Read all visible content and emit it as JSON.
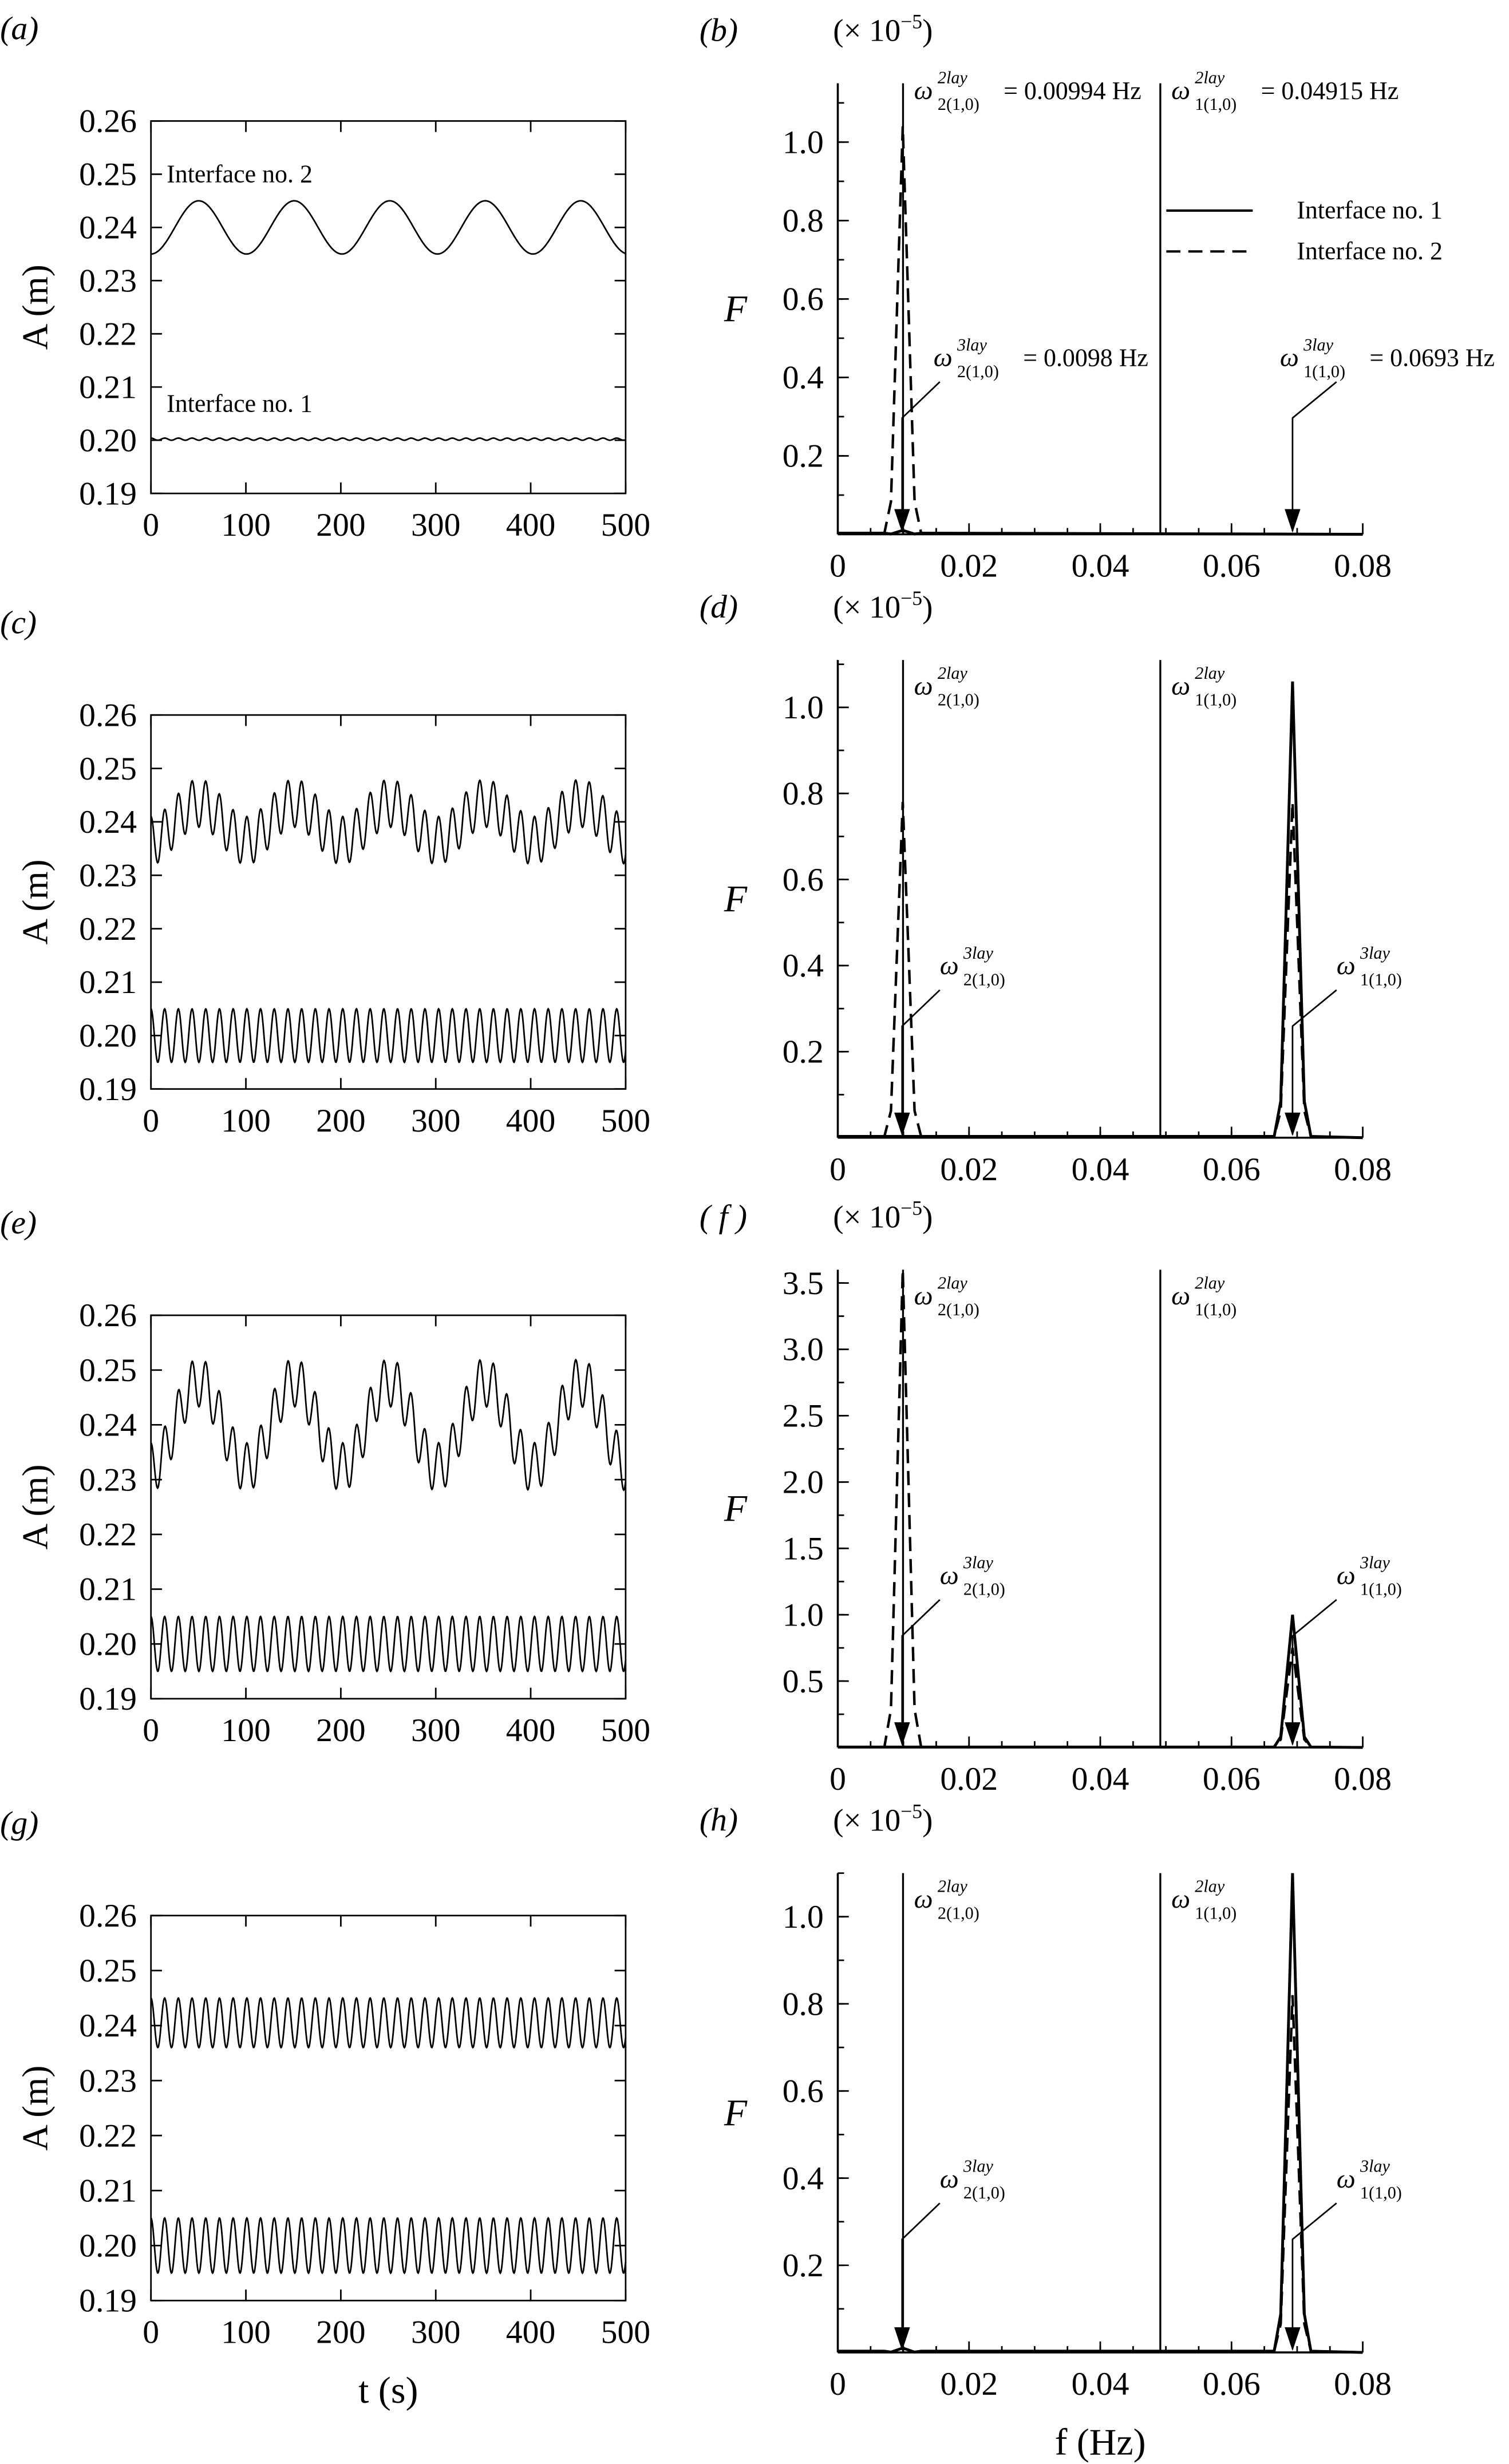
{
  "chart_data": [
    {
      "panel": "(a)",
      "type": "line",
      "xlabel": "",
      "ylabel": "A (m)",
      "xlim": [
        0,
        500
      ],
      "ylim": [
        0.19,
        0.26
      ],
      "xticks": [
        "0",
        "100",
        "200",
        "300",
        "400",
        "500"
      ],
      "yticks": [
        "0.19",
        "0.20",
        "0.21",
        "0.22",
        "0.23",
        "0.24",
        "0.25",
        "0.26"
      ],
      "annotations": [
        "Interface no. 2",
        "Interface no. 1"
      ],
      "series": [
        {
          "name": "Interface no. 2",
          "mean": 0.24,
          "components": [
            {
              "frequency_hz": 0.00994,
              "amplitude": 0.005
            }
          ]
        },
        {
          "name": "Interface no. 1",
          "mean": 0.2002,
          "components": [
            {
              "frequency_hz": 0.0693,
              "amplitude": 0.0002
            }
          ]
        }
      ]
    },
    {
      "panel": "(b)",
      "type": "line",
      "xlabel": "",
      "ylabel": "F",
      "multiplier": "(× 10",
      "multiplier_exp": "−5",
      "multiplier_close": ")",
      "xlim": [
        0,
        0.08
      ],
      "ylim": [
        0,
        1.15
      ],
      "xticks": [
        "0",
        "0.02",
        "0.04",
        "0.06",
        "0.08"
      ],
      "yticks": [
        "0.2",
        "0.4",
        "0.6",
        "0.8",
        "1.0"
      ],
      "legend": {
        "placement": "top-right",
        "entries": [
          {
            "label": "Interface no. 1",
            "style": "solid"
          },
          {
            "label": "Interface no. 2",
            "style": "dashed"
          }
        ]
      },
      "vlines": [
        {
          "f": 0.00994,
          "sup": "2lay",
          "sub": "2(1,0)",
          "value": "= 0.00994 Hz"
        },
        {
          "f": 0.04915,
          "sup": "2lay",
          "sub": "1(1,0)",
          "value": "= 0.04915 Hz"
        }
      ],
      "arrows": [
        {
          "f": 0.0098,
          "sup": "3lay",
          "sub": "2(1,0)",
          "value": "= 0.0098 Hz"
        },
        {
          "f": 0.0693,
          "sup": "3lay",
          "sub": "1(1,0)",
          "value": "= 0.0693 Hz"
        }
      ],
      "series": [
        {
          "name": "Interface no. 1",
          "style": "solid",
          "peaks": [
            {
              "f": 0.0099,
              "F": 0.01
            }
          ]
        },
        {
          "name": "Interface no. 2",
          "style": "dashed",
          "peaks": [
            {
              "f": 0.0099,
              "F": 1.04
            }
          ]
        }
      ]
    },
    {
      "panel": "(c)",
      "type": "line",
      "xlabel": "",
      "ylabel": "A (m)",
      "xlim": [
        0,
        500
      ],
      "ylim": [
        0.19,
        0.26
      ],
      "xticks": [
        "0",
        "100",
        "200",
        "300",
        "400",
        "500"
      ],
      "yticks": [
        "0.19",
        "0.20",
        "0.21",
        "0.22",
        "0.23",
        "0.24",
        "0.25",
        "0.26"
      ],
      "series": [
        {
          "name": "Interface no. 2",
          "mean": 0.24,
          "components": [
            {
              "frequency_hz": 0.00994,
              "amplitude": 0.0035
            },
            {
              "frequency_hz": 0.0693,
              "amplitude": 0.0045
            }
          ]
        },
        {
          "name": "Interface no. 1",
          "mean": 0.2,
          "components": [
            {
              "frequency_hz": 0.0693,
              "amplitude": 0.005
            }
          ]
        }
      ]
    },
    {
      "panel": "(d)",
      "type": "line",
      "xlabel": "",
      "ylabel": "F",
      "multiplier": "(× 10",
      "multiplier_exp": "−5",
      "multiplier_close": ")",
      "xlim": [
        0,
        0.08
      ],
      "ylim": [
        0,
        1.11
      ],
      "xticks": [
        "0",
        "0.02",
        "0.04",
        "0.06",
        "0.08"
      ],
      "yticks": [
        "0.2",
        "0.4",
        "0.6",
        "0.8",
        "1.0"
      ],
      "vlines": [
        {
          "f": 0.00994,
          "sup": "2lay",
          "sub": "2(1,0)",
          "value": ""
        },
        {
          "f": 0.04915,
          "sup": "2lay",
          "sub": "1(1,0)",
          "value": ""
        }
      ],
      "arrows": [
        {
          "f": 0.0098,
          "sup": "3lay",
          "sub": "2(1,0)",
          "value": ""
        },
        {
          "f": 0.0693,
          "sup": "3lay",
          "sub": "1(1,0)",
          "value": ""
        }
      ],
      "series": [
        {
          "name": "Interface no. 1",
          "style": "solid",
          "peaks": [
            {
              "f": 0.0693,
              "F": 1.06
            }
          ]
        },
        {
          "name": "Interface no. 2",
          "style": "dashed",
          "peaks": [
            {
              "f": 0.0099,
              "F": 0.78
            },
            {
              "f": 0.0693,
              "F": 0.78
            }
          ]
        }
      ]
    },
    {
      "panel": "(e)",
      "type": "line",
      "xlabel": "",
      "ylabel": "A (m)",
      "xlim": [
        0,
        500
      ],
      "ylim": [
        0.19,
        0.26
      ],
      "xticks": [
        "0",
        "100",
        "200",
        "300",
        "400",
        "500"
      ],
      "yticks": [
        "0.19",
        "0.20",
        "0.21",
        "0.22",
        "0.23",
        "0.24",
        "0.25",
        "0.26"
      ],
      "series": [
        {
          "name": "Interface no. 2",
          "mean": 0.24,
          "components": [
            {
              "frequency_hz": 0.00994,
              "amplitude": 0.0078
            },
            {
              "frequency_hz": 0.0693,
              "amplitude": 0.0045
            }
          ]
        },
        {
          "name": "Interface no. 1",
          "mean": 0.2,
          "components": [
            {
              "frequency_hz": 0.0693,
              "amplitude": 0.005
            }
          ]
        }
      ]
    },
    {
      "panel": "( f )",
      "type": "line",
      "xlabel": "",
      "ylabel": "F",
      "multiplier": "(× 10",
      "multiplier_exp": "−5",
      "multiplier_close": ")",
      "xlim": [
        0,
        0.08
      ],
      "ylim": [
        0,
        3.6
      ],
      "xticks": [
        "0",
        "0.02",
        "0.04",
        "0.06",
        "0.08"
      ],
      "yticks": [
        "0.5",
        "1.0",
        "1.5",
        "2.0",
        "2.5",
        "3.0",
        "3.5"
      ],
      "vlines": [
        {
          "f": 0.00994,
          "sup": "2lay",
          "sub": "2(1,0)",
          "value": ""
        },
        {
          "f": 0.04915,
          "sup": "2lay",
          "sub": "1(1,0)",
          "value": ""
        }
      ],
      "arrows": [
        {
          "f": 0.0098,
          "sup": "3lay",
          "sub": "2(1,0)",
          "value": ""
        },
        {
          "f": 0.0693,
          "sup": "3lay",
          "sub": "1(1,0)",
          "value": ""
        }
      ],
      "series": [
        {
          "name": "Interface no. 1",
          "style": "solid",
          "peaks": [
            {
              "f": 0.0693,
              "F": 1.0
            }
          ]
        },
        {
          "name": "Interface no. 2",
          "style": "dashed",
          "peaks": [
            {
              "f": 0.0099,
              "F": 3.6
            },
            {
              "f": 0.0693,
              "F": 0.75
            }
          ]
        }
      ]
    },
    {
      "panel": "(g)",
      "type": "line",
      "xlabel": "t (s)",
      "ylabel": "A (m)",
      "xlim": [
        0,
        500
      ],
      "ylim": [
        0.19,
        0.26
      ],
      "xticks": [
        "0",
        "100",
        "200",
        "300",
        "400",
        "500"
      ],
      "yticks": [
        "0.19",
        "0.20",
        "0.21",
        "0.22",
        "0.23",
        "0.24",
        "0.25",
        "0.26"
      ],
      "series": [
        {
          "name": "Interface no. 2",
          "mean": 0.2405,
          "components": [
            {
              "frequency_hz": 0.0693,
              "amplitude": 0.0045
            }
          ]
        },
        {
          "name": "Interface no. 1",
          "mean": 0.2,
          "components": [
            {
              "frequency_hz": 0.0693,
              "amplitude": 0.005
            }
          ]
        }
      ]
    },
    {
      "panel": "(h)",
      "type": "line",
      "xlabel": "f (Hz)",
      "ylabel": "F",
      "multiplier": "(× 10",
      "multiplier_exp": "−5",
      "multiplier_close": ")",
      "xlim": [
        0,
        0.08
      ],
      "ylim": [
        0,
        1.1
      ],
      "xticks": [
        "0",
        "0.02",
        "0.04",
        "0.06",
        "0.08"
      ],
      "yticks": [
        "0.2",
        "0.4",
        "0.6",
        "0.8",
        "1.0"
      ],
      "vlines": [
        {
          "f": 0.00994,
          "sup": "2lay",
          "sub": "2(1,0)",
          "value": ""
        },
        {
          "f": 0.04915,
          "sup": "2lay",
          "sub": "1(1,0)",
          "value": ""
        }
      ],
      "arrows": [
        {
          "f": 0.0098,
          "sup": "3lay",
          "sub": "2(1,0)",
          "value": ""
        },
        {
          "f": 0.0693,
          "sup": "3lay",
          "sub": "1(1,0)",
          "value": ""
        }
      ],
      "series": [
        {
          "name": "Interface no. 1",
          "style": "solid",
          "peaks": [
            {
              "f": 0.0099,
              "F": 0.01
            },
            {
              "f": 0.0693,
              "F": 1.1
            }
          ]
        },
        {
          "name": "Interface no. 2",
          "style": "dashed",
          "peaks": [
            {
              "f": 0.0099,
              "F": 0.01
            },
            {
              "f": 0.0693,
              "F": 0.82
            }
          ]
        }
      ]
    }
  ]
}
